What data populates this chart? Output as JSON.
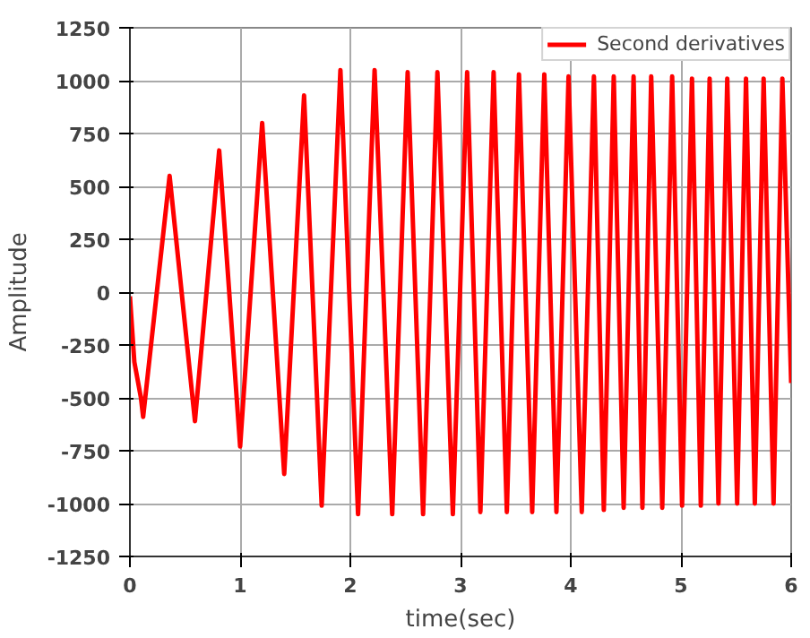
{
  "chart_data": {
    "type": "line",
    "xlabel": "time(sec)",
    "ylabel": "Amplitude",
    "x": [
      0,
      0.04,
      0.1,
      0.12,
      0.36,
      0.59,
      0.81,
      1.0,
      1.2,
      1.4,
      1.58,
      1.74,
      1.91,
      2.07,
      2.22,
      2.38,
      2.52,
      2.66,
      2.79,
      2.93,
      3.06,
      3.18,
      3.3,
      3.42,
      3.53,
      3.65,
      3.76,
      3.87,
      3.98,
      4.1,
      4.21,
      4.3,
      4.39,
      4.48,
      4.57,
      4.65,
      4.73,
      4.83,
      4.92,
      5.01,
      5.1,
      5.18,
      5.26,
      5.34,
      5.42,
      5.51,
      5.59,
      5.67,
      5.75,
      5.84,
      5.92,
      6.0
    ],
    "series": [
      {
        "name": "Second derivatives",
        "color": "#ff0000",
        "values": [
          -20,
          -330,
          -500,
          -590,
          550,
          -610,
          670,
          -730,
          800,
          -860,
          930,
          -1010,
          1050,
          -1050,
          1050,
          -1050,
          1040,
          -1050,
          1040,
          -1050,
          1040,
          -1040,
          1040,
          -1040,
          1030,
          -1040,
          1030,
          -1040,
          1020,
          -1040,
          1020,
          -1030,
          1020,
          -1020,
          1020,
          -1020,
          1020,
          -1020,
          1020,
          -1010,
          1010,
          -1010,
          1010,
          -1000,
          1010,
          -1000,
          1010,
          -1000,
          1010,
          -1000,
          1010,
          -430
        ]
      }
    ],
    "xlim": [
      0,
      6
    ],
    "xticks": [
      0,
      1,
      2,
      3,
      4,
      5,
      6
    ],
    "ylim": [
      -1250,
      1250
    ],
    "yticks": [
      -1250,
      -1000,
      -750,
      -500,
      -250,
      0,
      250,
      500,
      750,
      1000,
      1250
    ],
    "grid": true,
    "legend": "top right",
    "marker": "none",
    "line_style": "solid"
  }
}
